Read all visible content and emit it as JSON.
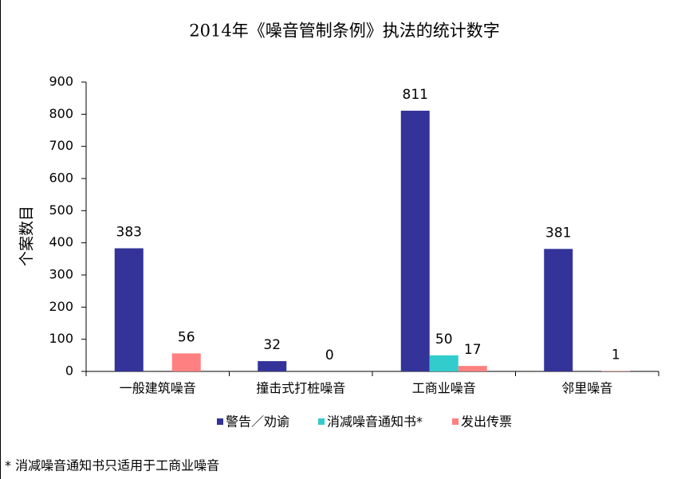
{
  "chart_data": {
    "type": "bar",
    "title": "2014年《噪音管制条例》执法的统计数字",
    "y_label": "个案数目",
    "categories": [
      "一般建筑噪音",
      "撞击式打桩噪音",
      "工商业噪音",
      "邻里噪音"
    ],
    "series": [
      {
        "name": "警告／劝谕",
        "color": "#333399",
        "values": [
          383,
          32,
          811,
          381
        ]
      },
      {
        "name": "消减噪音通知书*",
        "color": "#33cccc",
        "values": [
          null,
          null,
          50,
          null
        ]
      },
      {
        "name": "发出传票",
        "color": "#ff8080",
        "values": [
          56,
          0,
          17,
          1
        ]
      }
    ],
    "ylim": [
      0,
      900
    ],
    "yticks": [
      0,
      100,
      200,
      300,
      400,
      500,
      600,
      700,
      800,
      900
    ],
    "legend": "bottom",
    "footnote": "* 消减噪音通知书只适用于工商业噪音"
  }
}
